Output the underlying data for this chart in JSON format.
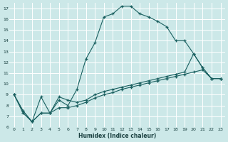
{
  "title": "",
  "xlabel": "Humidex (Indice chaleur)",
  "ylabel": "",
  "background_color": "#cce8e8",
  "grid_color": "#b0d4d4",
  "line_color": "#1a6060",
  "xlim": [
    -0.5,
    23.5
  ],
  "ylim": [
    6,
    17.5
  ],
  "yticks": [
    6,
    7,
    8,
    9,
    10,
    11,
    12,
    13,
    14,
    15,
    16,
    17
  ],
  "xticks": [
    0,
    1,
    2,
    3,
    4,
    5,
    6,
    7,
    8,
    9,
    10,
    11,
    12,
    13,
    14,
    15,
    16,
    17,
    18,
    19,
    20,
    21,
    22,
    23
  ],
  "series1_x": [
    0,
    1,
    2,
    3,
    4,
    5,
    6,
    7,
    8,
    9,
    10,
    11,
    12,
    13,
    14,
    15,
    16,
    17,
    18,
    19,
    20,
    21,
    22,
    23
  ],
  "series1_y": [
    9.0,
    7.3,
    6.5,
    8.8,
    7.3,
    8.5,
    8.0,
    9.5,
    12.3,
    13.8,
    16.2,
    16.5,
    17.2,
    17.2,
    16.5,
    16.2,
    15.8,
    15.3,
    14.0,
    14.0,
    12.8,
    11.5,
    10.5,
    10.5
  ],
  "series2_x": [
    0,
    1,
    2,
    3,
    4,
    5,
    6,
    7,
    8,
    9,
    10,
    11,
    12,
    13,
    14,
    15,
    16,
    17,
    18,
    19,
    20,
    21,
    22,
    23
  ],
  "series2_y": [
    9.0,
    7.5,
    6.5,
    7.3,
    7.3,
    8.8,
    8.5,
    8.3,
    8.5,
    9.0,
    9.3,
    9.5,
    9.7,
    9.9,
    10.1,
    10.3,
    10.5,
    10.7,
    10.9,
    11.1,
    12.8,
    11.5,
    10.5,
    10.5
  ],
  "series3_x": [
    0,
    1,
    2,
    3,
    4,
    5,
    6,
    7,
    8,
    9,
    10,
    11,
    12,
    13,
    14,
    15,
    16,
    17,
    18,
    19,
    20,
    21,
    22,
    23
  ],
  "series3_y": [
    9.0,
    7.5,
    6.5,
    7.3,
    7.3,
    7.8,
    7.8,
    8.0,
    8.3,
    8.7,
    9.0,
    9.2,
    9.5,
    9.7,
    9.9,
    10.1,
    10.3,
    10.5,
    10.7,
    10.9,
    11.1,
    11.3,
    10.5,
    10.5
  ]
}
